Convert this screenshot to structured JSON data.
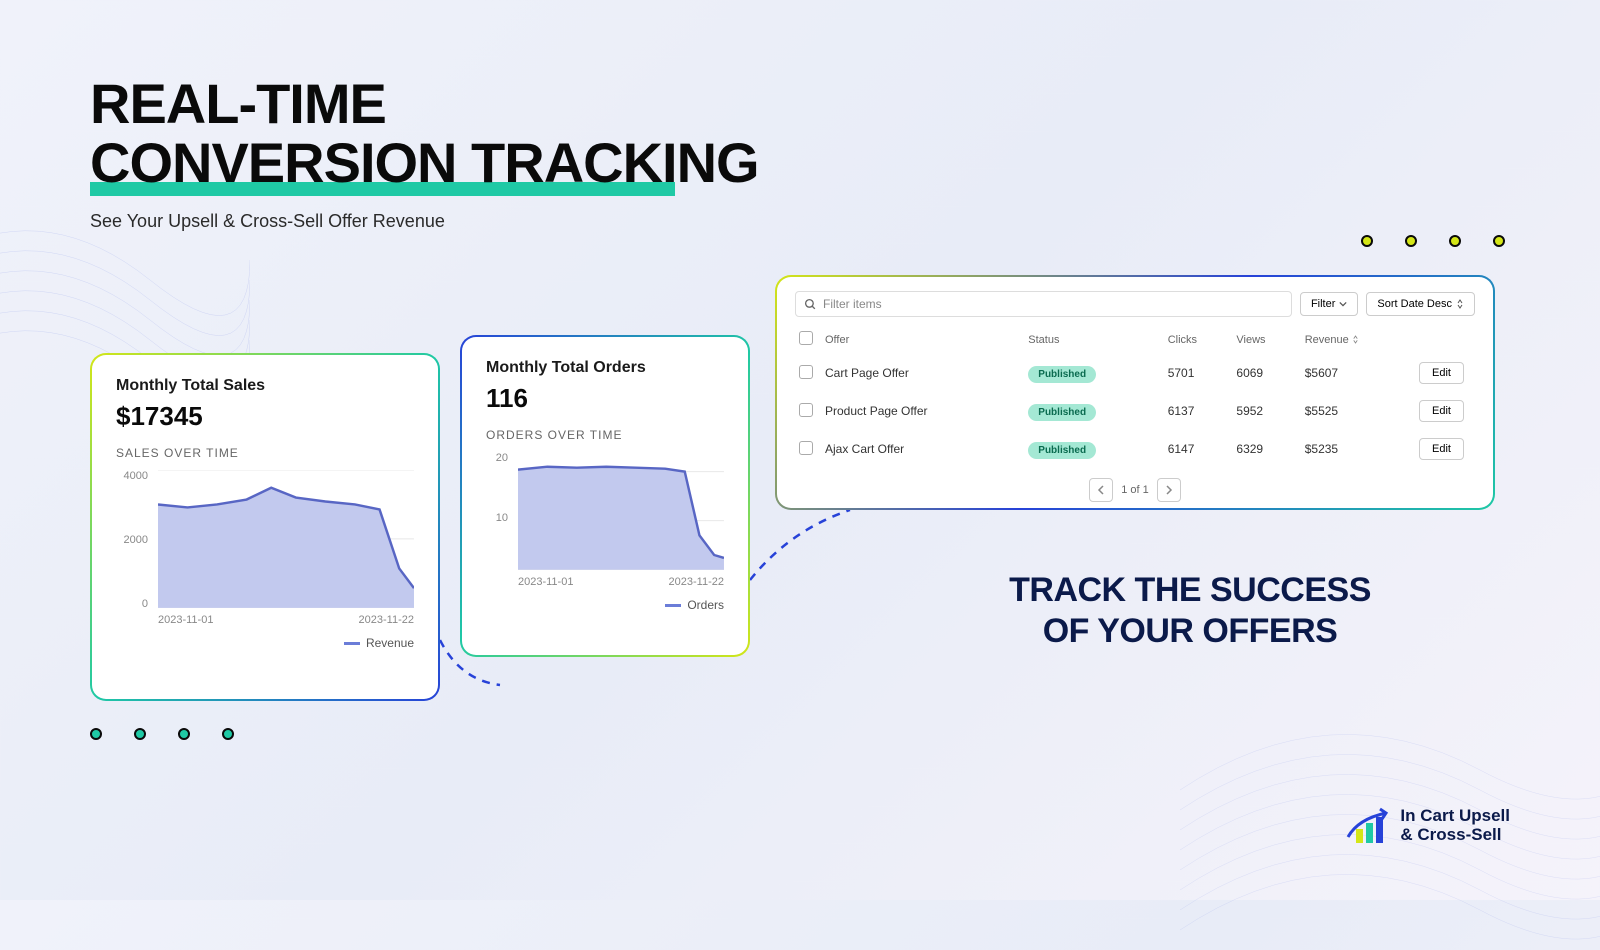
{
  "headline": {
    "line1": "REAL-TIME",
    "line2": "CONVERSION TRACKING",
    "subtitle": "See Your Upsell & Cross-Sell Offer Revenue",
    "underline_color": "#1fc9a5"
  },
  "sales_chart": {
    "title": "Monthly Total Sales",
    "value": "$17345",
    "subtitle": "SALES OVER TIME",
    "legend": "Revenue",
    "type": "area",
    "line_color": "#5866c4",
    "fill_color": "#c2c9ee",
    "yticks": [
      "4000",
      "2000",
      "0"
    ],
    "xticks": [
      "2023-11-01",
      "2023-11-22"
    ],
    "ylim": [
      0,
      5000
    ],
    "grid_color": "#e8e8e8"
  },
  "orders_chart": {
    "title": "Monthly Total Orders",
    "value": "116",
    "subtitle": "ORDERS OVER TIME",
    "legend": "Orders",
    "type": "area",
    "line_color": "#5866c4",
    "fill_color": "#c2c9ee",
    "yticks": [
      "20",
      "10"
    ],
    "xticks": [
      "2023-11-01",
      "2023-11-22"
    ],
    "ylim": [
      0,
      30
    ],
    "grid_color": "#e8e8e8"
  },
  "offers_table": {
    "search_placeholder": "Filter items",
    "filter_btn": "Filter",
    "sort_btn": "Sort Date Desc",
    "columns": [
      "",
      "Offer",
      "Status",
      "Clicks",
      "Views",
      "Revenue",
      ""
    ],
    "rows": [
      {
        "offer": "Cart Page Offer",
        "status": "Published",
        "clicks": "5701",
        "views": "6069",
        "revenue": "$5607",
        "action": "Edit"
      },
      {
        "offer": "Product Page Offer",
        "status": "Published",
        "clicks": "6137",
        "views": "5952",
        "revenue": "$5525",
        "action": "Edit"
      },
      {
        "offer": "Ajax Cart Offer",
        "status": "Published",
        "clicks": "6147",
        "views": "6329",
        "revenue": "$5235",
        "action": "Edit"
      }
    ],
    "pagination": "1 of 1",
    "badge_bg": "#a4e8d4",
    "badge_fg": "#0a6b4f"
  },
  "track_headline": {
    "line1": "TRACK THE SUCCESS",
    "line2": "OF YOUR OFFERS"
  },
  "brand": {
    "line1": "In Cart Upsell",
    "line2": "& Cross-Sell",
    "bar_colors": [
      "#d4e617",
      "#1fc9a5",
      "#2742d8"
    ]
  },
  "decoration": {
    "dots_yellow": "#d4e617",
    "dots_teal": "#1fc9a5",
    "connector_color": "#2742d8"
  }
}
